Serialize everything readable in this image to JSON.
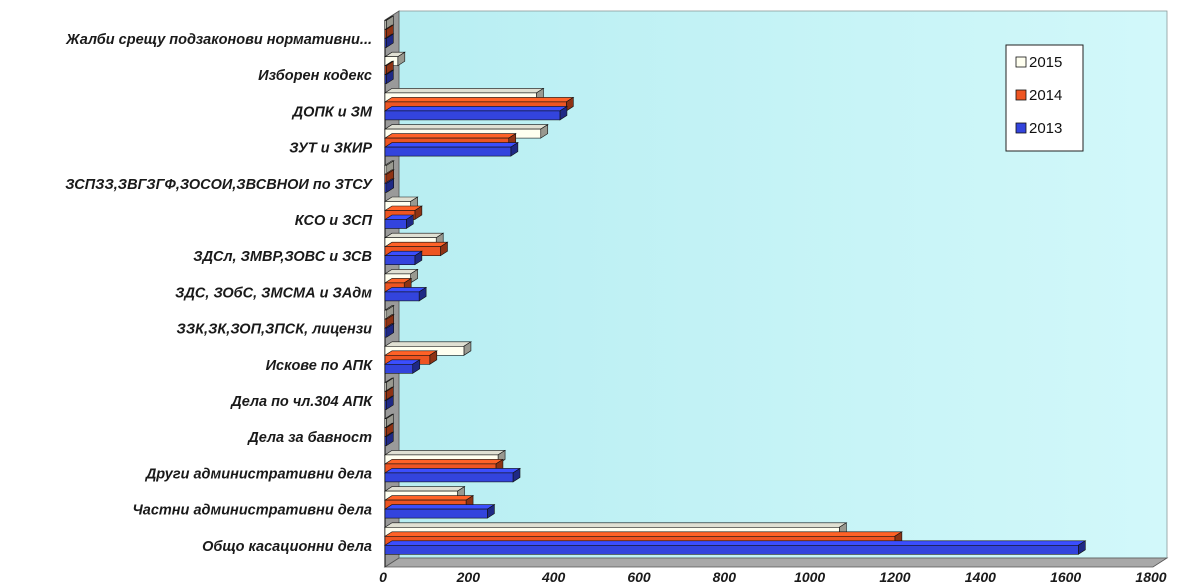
{
  "chart_data": {
    "type": "bar",
    "orientation": "horizontal",
    "style": "3d",
    "categories": [
      "Жалби срещу подзаконови нормативни...",
      "Изборен кодекс",
      "ДОПК и ЗМ",
      "ЗУТ и ЗКИР",
      "ЗСПЗЗ,ЗВГЗГФ,ЗОСОИ,ЗВСВНОИ по ЗТСУ",
      "КСО и ЗСП",
      "ЗДСл, ЗМВР,ЗОВС и ЗСВ",
      "ЗДС, ЗОбС,  ЗМСМА и  ЗАдм",
      "ЗЗК,ЗК,ЗОП,ЗПСК,     лицензи",
      "Искове по АПК",
      "Дела по чл.304 АПК",
      "Дела за бавност",
      "Други административни дела",
      "Частни административни дела",
      "Общо  касационни дела"
    ],
    "series": [
      {
        "name": "2015",
        "color": "#fffff0",
        "values": [
          3,
          30,
          355,
          365,
          4,
          60,
          120,
          60,
          4,
          185,
          3,
          3,
          265,
          170,
          1065
        ]
      },
      {
        "name": "2014",
        "color": "#ee5522",
        "values": [
          3,
          3,
          425,
          290,
          4,
          70,
          130,
          45,
          4,
          105,
          3,
          3,
          260,
          190,
          1195
        ]
      },
      {
        "name": "2013",
        "color": "#3344dd",
        "values": [
          3,
          3,
          410,
          295,
          4,
          50,
          70,
          80,
          4,
          65,
          3,
          3,
          300,
          240,
          1625
        ]
      }
    ],
    "x_ticks": [
      "0",
      "200",
      "400",
      "600",
      "800",
      "1000",
      "1200",
      "1400",
      "1600",
      "1800"
    ],
    "xlim": [
      0,
      1800
    ],
    "legend_position": "top-right",
    "legend_order": [
      "2015",
      "2014",
      "2013"
    ],
    "plot_background": "#c9f5f7",
    "grid": false,
    "title": "",
    "xlabel": "",
    "ylabel": ""
  }
}
